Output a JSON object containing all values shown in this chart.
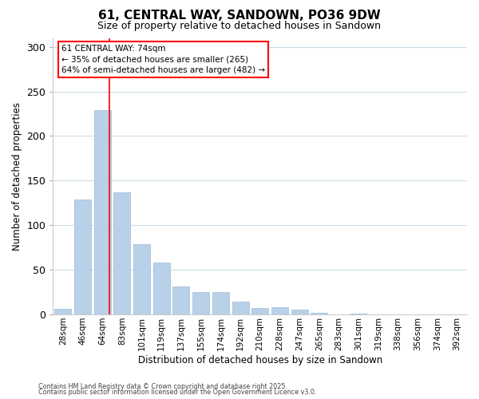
{
  "title": "61, CENTRAL WAY, SANDOWN, PO36 9DW",
  "subtitle": "Size of property relative to detached houses in Sandown",
  "xlabel": "Distribution of detached houses by size in Sandown",
  "ylabel": "Number of detached properties",
  "bar_labels": [
    "28sqm",
    "46sqm",
    "64sqm",
    "83sqm",
    "101sqm",
    "119sqm",
    "137sqm",
    "155sqm",
    "174sqm",
    "192sqm",
    "210sqm",
    "228sqm",
    "247sqm",
    "265sqm",
    "283sqm",
    "301sqm",
    "319sqm",
    "338sqm",
    "356sqm",
    "374sqm",
    "392sqm"
  ],
  "bar_values": [
    6,
    129,
    229,
    137,
    79,
    58,
    31,
    25,
    25,
    14,
    7,
    8,
    5,
    2,
    0,
    1,
    0,
    0,
    0,
    0,
    0
  ],
  "bar_color": "#b8d0e8",
  "bar_edge_color": "#a8c4de",
  "ylim": [
    0,
    310
  ],
  "yticks": [
    0,
    50,
    100,
    150,
    200,
    250,
    300
  ],
  "annotation_title": "61 CENTRAL WAY: 74sqm",
  "annotation_line1": "← 35% of detached houses are smaller (265)",
  "annotation_line2": "64% of semi-detached houses are larger (482) →",
  "footer1": "Contains HM Land Registry data © Crown copyright and database right 2025.",
  "footer2": "Contains public sector information licensed under the Open Government Licence v3.0.",
  "background_color": "#ffffff",
  "grid_color": "#ccdde8"
}
